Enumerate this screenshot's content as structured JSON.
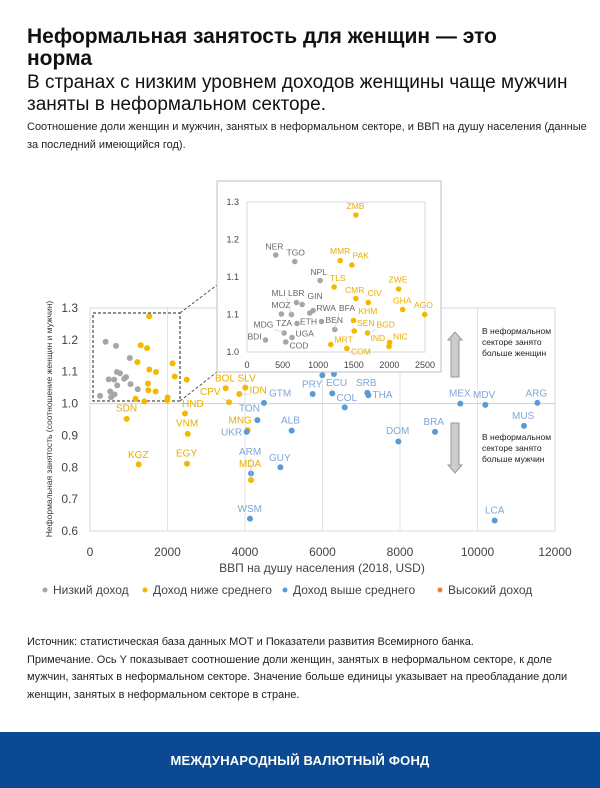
{
  "header": {
    "title": "Неформальная занятость для женщин — это норма",
    "subtitle": "В странах с низким уровнем доходов женщины чаще мужчин заняты в неформальном секторе.",
    "note": "Соотношение доли женщин и мужчин, занятых в неформальном секторе, и ВВП на душу населения (данные за последний имеющийся год)."
  },
  "chart_data": {
    "type": "scatter",
    "xlabel": "ВВП на душу населения (2018, USD)",
    "ylabel": "Неформальная занятость (соотношение женщин и мужчин)",
    "xlim": [
      0,
      12000
    ],
    "ylim": [
      0.6,
      1.3
    ],
    "xticks": [
      "0",
      "2000",
      "4000",
      "6000",
      "8000",
      "10000",
      "12000"
    ],
    "yticks": [
      "0.6",
      "0.7",
      "0.8",
      "0.9",
      "1.0",
      "1.1",
      "1.2",
      "1.3"
    ],
    "grid": "vertical lines and y=1.0 reference line",
    "legend_position": "bottom",
    "colors": {
      "low": "#a6a6a6",
      "lower_middle": "#f5b800",
      "upper_middle": "#5b9bd5",
      "high": "#ed7d31"
    },
    "legend": [
      {
        "group": "low",
        "label": "Низкий доход"
      },
      {
        "group": "lower_middle",
        "label": "Доход ниже среднего"
      },
      {
        "group": "upper_middle",
        "label": "Доход выше среднего"
      },
      {
        "group": "high",
        "label": "Высокий доход"
      }
    ],
    "annotations": {
      "up": "В неформальном секторе занято больше женщин",
      "down": "В неформальном секторе занято больше мужчин"
    },
    "inset": {
      "xlim": [
        0,
        2500
      ],
      "ylim": [
        1.0,
        1.3
      ],
      "xticks": [
        "0",
        "500",
        "1000",
        "1500",
        "2000",
        "2500"
      ],
      "yticks": [
        "1.0",
        "1.1",
        "1.1",
        "1.2",
        "1.3"
      ]
    },
    "points": [
      {
        "code": "NER",
        "group": "low",
        "x": 403,
        "y": 1.194
      },
      {
        "code": "TGO",
        "group": "low",
        "x": 671,
        "y": 1.181
      },
      {
        "code": "NPL",
        "group": "low",
        "x": 1027,
        "y": 1.143
      },
      {
        "code": "LBR",
        "group": "low",
        "x": 694,
        "y": 1.099
      },
      {
        "code": "GIN",
        "group": "low",
        "x": 774,
        "y": 1.095
      },
      {
        "code": "RWA",
        "group": "low",
        "x": 929,
        "y": 1.083
      },
      {
        "code": "ETH",
        "group": "low",
        "x": 882,
        "y": 1.078
      },
      {
        "code": "MOZ",
        "group": "low",
        "x": 483,
        "y": 1.076
      },
      {
        "code": "MLI",
        "group": "low",
        "x": 624,
        "y": 1.075
      },
      {
        "code": "BEN",
        "group": "low",
        "x": 1046,
        "y": 1.061
      },
      {
        "code": "TZA",
        "group": "low",
        "x": 703,
        "y": 1.057
      },
      {
        "code": "BFA",
        "group": "low",
        "x": 1233,
        "y": 1.045
      },
      {
        "code": "MDG",
        "group": "low",
        "x": 521,
        "y": 1.038
      },
      {
        "code": "UGA",
        "group": "low",
        "x": 633,
        "y": 1.029
      },
      {
        "code": "COD",
        "group": "low",
        "x": 544,
        "y": 1.02
      },
      {
        "code": "BDI",
        "group": "low",
        "x": 260,
        "y": 1.024
      },
      {
        "code": "ZMB",
        "group": "lower_middle",
        "x": 1529,
        "y": 1.274
      },
      {
        "code": "MMR",
        "group": "lower_middle",
        "x": 1309,
        "y": 1.183
      },
      {
        "code": "PAK",
        "group": "lower_middle",
        "x": 1473,
        "y": 1.174
      },
      {
        "code": "TLS",
        "group": "lower_middle",
        "x": 1224,
        "y": 1.13
      },
      {
        "code": "ZWE",
        "group": "lower_middle",
        "x": 2130,
        "y": 1.126
      },
      {
        "code": "CMR",
        "group": "lower_middle",
        "x": 1529,
        "y": 1.107
      },
      {
        "code": "CIV",
        "group": "lower_middle",
        "x": 1703,
        "y": 1.099
      },
      {
        "code": "GHA",
        "group": "lower_middle",
        "x": 2186,
        "y": 1.085
      },
      {
        "code": "KHM",
        "group": "lower_middle",
        "x": 1496,
        "y": 1.063
      },
      {
        "code": "SEN",
        "group": "lower_middle",
        "x": 1506,
        "y": 1.042
      },
      {
        "code": "BGD",
        "group": "lower_middle",
        "x": 1693,
        "y": 1.038
      },
      {
        "code": "NIC",
        "group": "lower_middle",
        "x": 2003,
        "y": 1.019
      },
      {
        "code": "IND",
        "group": "lower_middle",
        "x": 1994,
        "y": 1.011
      },
      {
        "code": "MRT",
        "group": "lower_middle",
        "x": 1177,
        "y": 1.015
      },
      {
        "code": "COM",
        "group": "lower_middle",
        "x": 1402,
        "y": 1.007
      },
      {
        "code": "AGO",
        "group": "lower_middle",
        "x": 2495,
        "y": 1.075
      },
      {
        "code": "SDN",
        "group": "lower_middle",
        "x": 946,
        "y": 0.952
      },
      {
        "code": "KGZ",
        "group": "lower_middle",
        "x": 1256,
        "y": 0.809
      },
      {
        "code": "HND",
        "group": "lower_middle",
        "x": 2452,
        "y": 0.969
      },
      {
        "code": "VNM",
        "group": "lower_middle",
        "x": 2521,
        "y": 0.905
      },
      {
        "code": "EGY",
        "group": "lower_middle",
        "x": 2503,
        "y": 0.811
      },
      {
        "code": "BOL",
        "group": "lower_middle",
        "x": 3501,
        "y": 1.048
      },
      {
        "code": "SLV",
        "group": "lower_middle",
        "x": 4009,
        "y": 1.05
      },
      {
        "code": "IDN",
        "group": "lower_middle",
        "x": 3853,
        "y": 1.03
      },
      {
        "code": "CPV",
        "group": "lower_middle",
        "x": 3587,
        "y": 1.004
      },
      {
        "code": "MNG",
        "group": "lower_middle",
        "x": 4070,
        "y": 0.917
      },
      {
        "code": "MDA",
        "group": "lower_middle",
        "x": 4155,
        "y": 0.76
      },
      {
        "code": "GTM",
        "group": "upper_middle",
        "x": 4490,
        "y": 1.002
      },
      {
        "code": "TON",
        "group": "upper_middle",
        "x": 4319,
        "y": 0.948
      },
      {
        "code": "UKR",
        "group": "upper_middle",
        "x": 4044,
        "y": 0.911
      },
      {
        "code": "ARM",
        "group": "upper_middle",
        "x": 4155,
        "y": 0.781
      },
      {
        "code": "WSM",
        "group": "upper_middle",
        "x": 4129,
        "y": 0.639
      },
      {
        "code": "ALB",
        "group": "upper_middle",
        "x": 5204,
        "y": 0.915
      },
      {
        "code": "GUY",
        "group": "upper_middle",
        "x": 4912,
        "y": 0.8
      },
      {
        "code": "PRY",
        "group": "upper_middle",
        "x": 5746,
        "y": 1.03
      },
      {
        "code": "ECU",
        "group": "upper_middle",
        "x": 6252,
        "y": 1.032
      },
      {
        "code": "COL",
        "group": "upper_middle",
        "x": 6573,
        "y": 0.988
      },
      {
        "code": "SRB",
        "group": "upper_middle",
        "x": 7157,
        "y": 1.034
      },
      {
        "code": "THA",
        "group": "upper_middle",
        "x": 7184,
        "y": 1.026
      },
      {
        "code": "",
        "group": "upper_middle",
        "x": 5996,
        "y": 1.089
      },
      {
        "code": "",
        "group": "upper_middle",
        "x": 6296,
        "y": 1.093
      },
      {
        "code": "DOM",
        "group": "upper_middle",
        "x": 7957,
        "y": 0.881
      },
      {
        "code": "BRA",
        "group": "upper_middle",
        "x": 8903,
        "y": 0.911
      },
      {
        "code": "MEX",
        "group": "upper_middle",
        "x": 9557,
        "y": 1.0
      },
      {
        "code": "MDV",
        "group": "upper_middle",
        "x": 10202,
        "y": 0.996
      },
      {
        "code": "ARG",
        "group": "upper_middle",
        "x": 11545,
        "y": 1.002
      },
      {
        "code": "MUS",
        "group": "upper_middle",
        "x": 11200,
        "y": 0.93
      },
      {
        "code": "LCA",
        "group": "upper_middle",
        "x": 10443,
        "y": 0.633
      }
    ]
  },
  "source": {
    "source_text": "Источник: статистическая база данных МОТ и Показатели развития Всемирного банка.",
    "note_text": "Примечание. Ось Y показывает соотношение доли женщин, занятых в неформальном секторе, к доле мужчин, занятых в неформальном секторе. Значение больше единицы указывает на преобладание доли женщин, занятых в неформальном секторе в стране."
  },
  "footer": {
    "org": "МЕЖДУНАРОДНЫЙ ВАЛЮТНЫЙ ФОНД"
  }
}
